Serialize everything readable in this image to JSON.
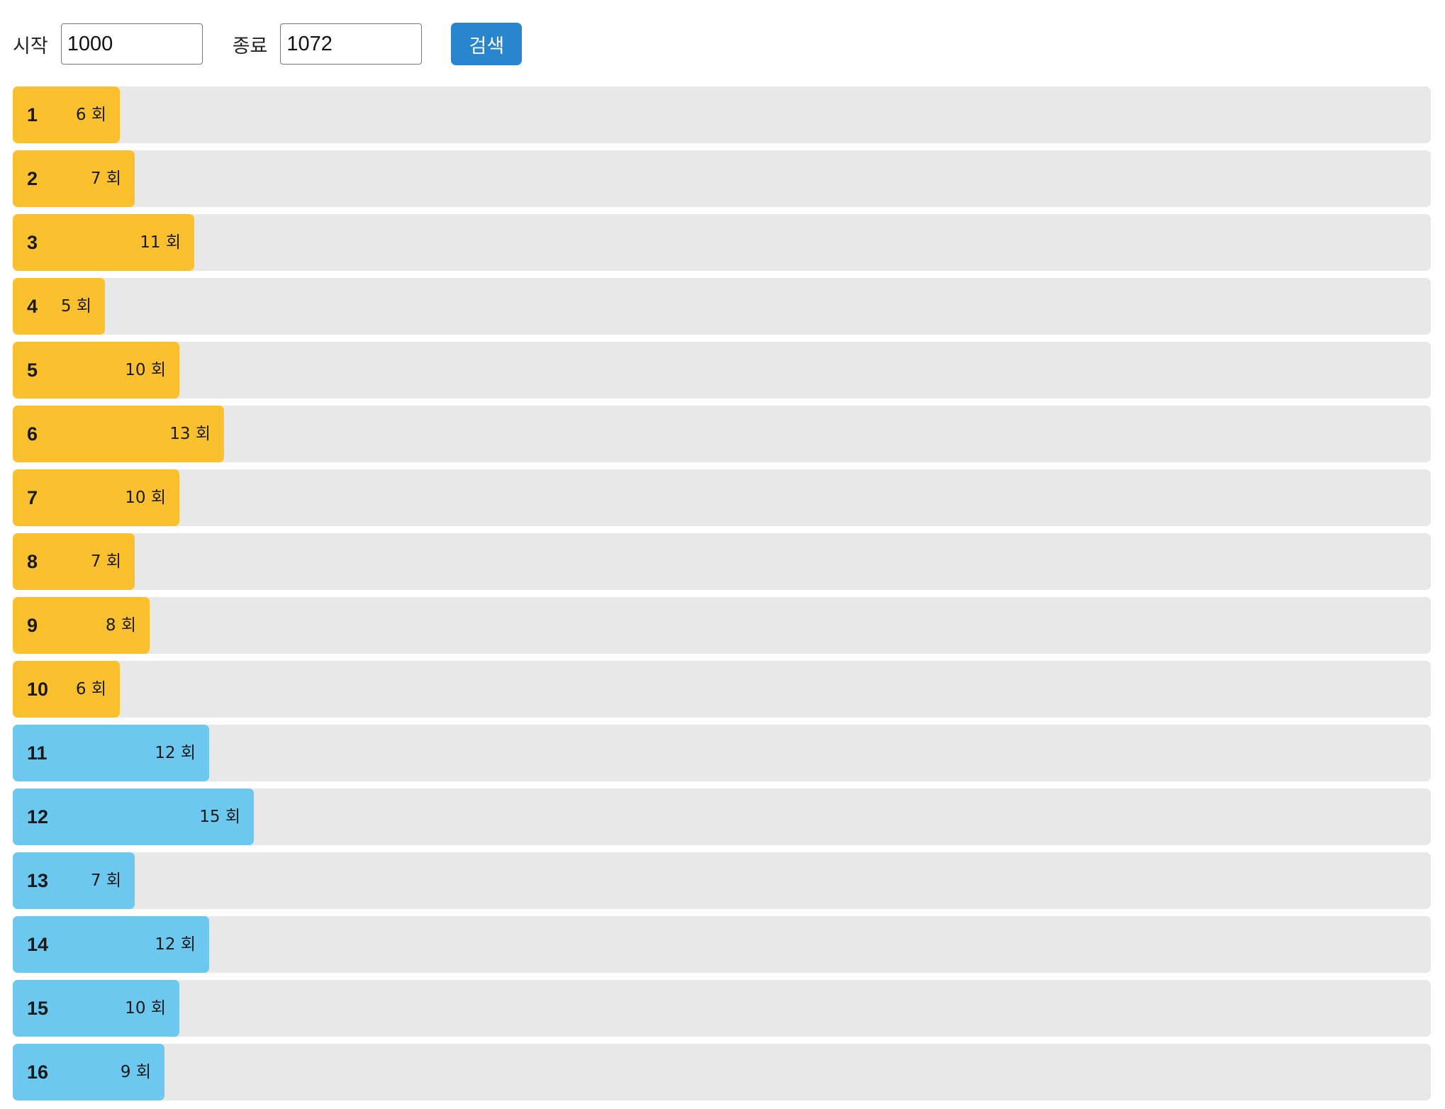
{
  "search": {
    "start_label": "시작",
    "start_value": "1000",
    "end_label": "종료",
    "end_value": "1072",
    "button_label": "검색"
  },
  "colors": {
    "group_1_10": "#fbc02d",
    "group_11_20": "#6dc8f0",
    "track": "#e8e8e8",
    "button": "#2a85cf"
  },
  "rows": [
    {
      "number": "1",
      "count": 6,
      "count_label": "6 회",
      "group": "yellow"
    },
    {
      "number": "2",
      "count": 7,
      "count_label": "7 회",
      "group": "yellow"
    },
    {
      "number": "3",
      "count": 11,
      "count_label": "11 회",
      "group": "yellow"
    },
    {
      "number": "4",
      "count": 5,
      "count_label": "5 회",
      "group": "yellow"
    },
    {
      "number": "5",
      "count": 10,
      "count_label": "10 회",
      "group": "yellow"
    },
    {
      "number": "6",
      "count": 13,
      "count_label": "13 회",
      "group": "yellow"
    },
    {
      "number": "7",
      "count": 10,
      "count_label": "10 회",
      "group": "yellow"
    },
    {
      "number": "8",
      "count": 7,
      "count_label": "7 회",
      "group": "yellow"
    },
    {
      "number": "9",
      "count": 8,
      "count_label": "8 회",
      "group": "yellow"
    },
    {
      "number": "10",
      "count": 6,
      "count_label": "6 회",
      "group": "yellow"
    },
    {
      "number": "11",
      "count": 12,
      "count_label": "12 회",
      "group": "blue"
    },
    {
      "number": "12",
      "count": 15,
      "count_label": "15 회",
      "group": "blue"
    },
    {
      "number": "13",
      "count": 7,
      "count_label": "7 회",
      "group": "blue"
    },
    {
      "number": "14",
      "count": 12,
      "count_label": "12 회",
      "group": "blue"
    },
    {
      "number": "15",
      "count": 10,
      "count_label": "10 회",
      "group": "blue"
    },
    {
      "number": "16",
      "count": 9,
      "count_label": "9 회",
      "group": "blue"
    }
  ]
}
